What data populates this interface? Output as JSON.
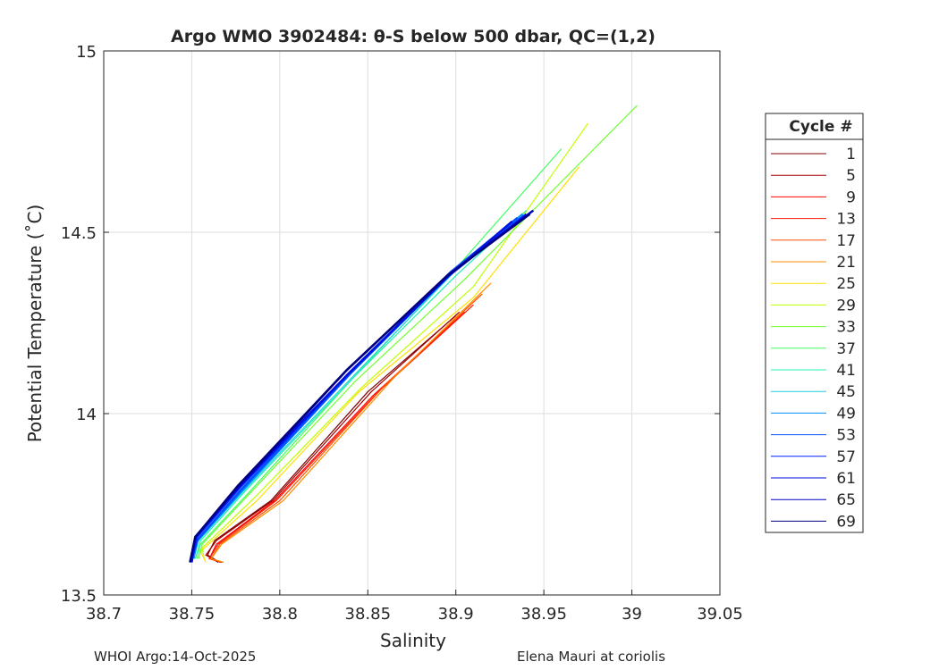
{
  "chart_data": {
    "type": "line",
    "title": "Argo WMO 3902484: θ-S below 500 dbar,  QC=(1,2)",
    "xlabel": "Salinity",
    "ylabel": "Potential Temperature (˚C)",
    "xlim": [
      38.7,
      39.05
    ],
    "ylim": [
      13.5,
      15
    ],
    "xticks": [
      38.7,
      38.75,
      38.8,
      38.85,
      38.9,
      38.95,
      39,
      39.05
    ],
    "xtick_labels": [
      "38.7",
      "38.75",
      "38.8",
      "38.85",
      "38.9",
      "38.95",
      "39",
      "39.05"
    ],
    "yticks": [
      13.5,
      14,
      14.5,
      15
    ],
    "ytick_labels": [
      "13.5",
      "14",
      "14.5",
      "15"
    ],
    "grid": true,
    "legend_title": "Cycle #",
    "legend_placement": "right",
    "series": [
      {
        "name": "1",
        "color": "#800000",
        "points": [
          [
            38.766,
            13.59
          ],
          [
            38.759,
            13.61
          ],
          [
            38.763,
            13.65
          ],
          [
            38.795,
            13.76
          ],
          [
            38.85,
            14.06
          ],
          [
            38.9,
            14.27
          ]
        ]
      },
      {
        "name": "5",
        "color": "#a00000",
        "points": [
          [
            38.765,
            13.59
          ],
          [
            38.758,
            13.61
          ],
          [
            38.764,
            13.65
          ],
          [
            38.796,
            13.76
          ],
          [
            38.852,
            14.06
          ],
          [
            38.902,
            14.28
          ]
        ]
      },
      {
        "name": "9",
        "color": "#ff0000",
        "points": [
          [
            38.767,
            13.59
          ],
          [
            38.76,
            13.6
          ],
          [
            38.764,
            13.64
          ],
          [
            38.797,
            13.76
          ],
          [
            38.853,
            14.05
          ],
          [
            38.905,
            14.28
          ]
        ]
      },
      {
        "name": "13",
        "color": "#ff1a00",
        "points": [
          [
            38.767,
            13.59
          ],
          [
            38.76,
            13.6
          ],
          [
            38.765,
            13.64
          ],
          [
            38.798,
            13.76
          ],
          [
            38.856,
            14.06
          ],
          [
            38.91,
            14.3
          ]
        ]
      },
      {
        "name": "17",
        "color": "#ff5000",
        "points": [
          [
            38.768,
            13.59
          ],
          [
            38.761,
            13.6
          ],
          [
            38.766,
            13.64
          ],
          [
            38.8,
            13.76
          ],
          [
            38.86,
            14.08
          ],
          [
            38.915,
            14.33
          ]
        ]
      },
      {
        "name": "21",
        "color": "#ff8c00",
        "points": [
          [
            38.768,
            13.59
          ],
          [
            38.761,
            13.6
          ],
          [
            38.767,
            13.64
          ],
          [
            38.802,
            13.76
          ],
          [
            38.865,
            14.1
          ],
          [
            38.92,
            14.36
          ]
        ]
      },
      {
        "name": "25",
        "color": "#ffe000",
        "points": [
          [
            38.758,
            13.59
          ],
          [
            38.755,
            13.62
          ],
          [
            38.787,
            13.76
          ],
          [
            38.845,
            14.06
          ],
          [
            38.91,
            14.32
          ],
          [
            38.97,
            14.68
          ]
        ]
      },
      {
        "name": "29",
        "color": "#c0ff00",
        "points": [
          [
            38.757,
            13.6
          ],
          [
            38.756,
            13.63
          ],
          [
            38.786,
            13.77
          ],
          [
            38.846,
            14.07
          ],
          [
            38.91,
            14.35
          ],
          [
            38.975,
            14.8
          ]
        ]
      },
      {
        "name": "33",
        "color": "#70ff30",
        "points": [
          [
            38.754,
            13.6
          ],
          [
            38.756,
            13.64
          ],
          [
            38.783,
            13.78
          ],
          [
            38.843,
            14.09
          ],
          [
            38.905,
            14.37
          ],
          [
            39.003,
            14.85
          ]
        ]
      },
      {
        "name": "37",
        "color": "#40ff60",
        "points": [
          [
            38.753,
            13.6
          ],
          [
            38.755,
            13.64
          ],
          [
            38.782,
            13.78
          ],
          [
            38.842,
            14.1
          ],
          [
            38.9,
            14.4
          ],
          [
            38.96,
            14.73
          ]
        ]
      },
      {
        "name": "41",
        "color": "#20f0b0",
        "points": [
          [
            38.752,
            13.6
          ],
          [
            38.755,
            13.65
          ],
          [
            38.781,
            13.79
          ],
          [
            38.842,
            14.1
          ],
          [
            38.9,
            14.38
          ],
          [
            38.94,
            14.56
          ]
        ]
      },
      {
        "name": "45",
        "color": "#20d0e0",
        "points": [
          [
            38.751,
            13.6
          ],
          [
            38.754,
            13.65
          ],
          [
            38.78,
            13.79
          ],
          [
            38.841,
            14.1
          ],
          [
            38.899,
            14.39
          ],
          [
            38.94,
            14.55
          ]
        ]
      },
      {
        "name": "49",
        "color": "#0090ff",
        "points": [
          [
            38.751,
            13.6
          ],
          [
            38.753,
            13.65
          ],
          [
            38.779,
            13.79
          ],
          [
            38.84,
            14.11
          ],
          [
            38.898,
            14.39
          ],
          [
            38.938,
            14.55
          ]
        ]
      },
      {
        "name": "53",
        "color": "#0050ff",
        "points": [
          [
            38.75,
            13.6
          ],
          [
            38.753,
            13.65
          ],
          [
            38.778,
            13.79
          ],
          [
            38.84,
            14.11
          ],
          [
            38.897,
            14.39
          ],
          [
            38.935,
            14.54
          ]
        ]
      },
      {
        "name": "57",
        "color": "#0020ff",
        "points": [
          [
            38.75,
            13.6
          ],
          [
            38.753,
            13.66
          ],
          [
            38.778,
            13.8
          ],
          [
            38.839,
            14.11
          ],
          [
            38.896,
            14.38
          ],
          [
            38.94,
            14.55
          ]
        ]
      },
      {
        "name": "61",
        "color": "#0010e0",
        "points": [
          [
            38.75,
            13.59
          ],
          [
            38.752,
            13.66
          ],
          [
            38.777,
            13.8
          ],
          [
            38.839,
            14.11
          ],
          [
            38.896,
            14.38
          ],
          [
            38.932,
            14.53
          ]
        ]
      },
      {
        "name": "65",
        "color": "#0000c0",
        "points": [
          [
            38.749,
            13.59
          ],
          [
            38.752,
            13.66
          ],
          [
            38.777,
            13.8
          ],
          [
            38.838,
            14.12
          ],
          [
            38.895,
            14.38
          ],
          [
            38.944,
            14.56
          ]
        ]
      },
      {
        "name": "69",
        "color": "#000080",
        "points": [
          [
            38.749,
            13.59
          ],
          [
            38.752,
            13.66
          ],
          [
            38.776,
            13.8
          ],
          [
            38.838,
            14.12
          ],
          [
            38.895,
            14.38
          ],
          [
            38.942,
            14.55
          ]
        ]
      }
    ]
  },
  "footer": {
    "left": "WHOI Argo:14-Oct-2025",
    "right": "Elena Mauri at coriolis"
  }
}
